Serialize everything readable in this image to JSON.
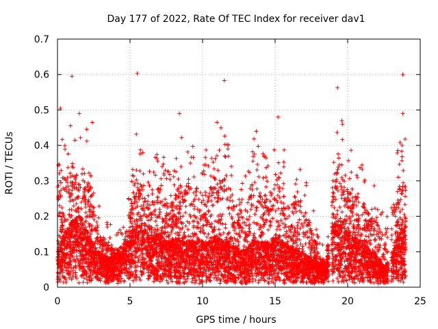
{
  "chart_data": {
    "type": "scatter",
    "title": "Day 177 of 2022, Rate Of TEC Index for receiver dav1",
    "xlabel": "GPS time / hours",
    "ylabel": "ROTI / TECUs",
    "xlim": [
      0,
      25
    ],
    "ylim": [
      0,
      0.7
    ],
    "x_ticks": [
      0,
      5,
      10,
      15,
      20,
      25
    ],
    "x_tick_labels": [
      "0",
      "5",
      "10",
      "15",
      "20",
      "25"
    ],
    "y_ticks": [
      0,
      0.1,
      0.2,
      0.3,
      0.4,
      0.5,
      0.6,
      0.7
    ],
    "y_tick_labels": [
      "0",
      "0.1",
      "0.2",
      "0.3",
      "0.4",
      "0.5",
      "0.6",
      "0.7"
    ],
    "grid": true,
    "marker": "+",
    "series_color": "#ff0000",
    "notable_points": [
      {
        "x": 0.2,
        "y": 0.505
      },
      {
        "x": 1.0,
        "y": 0.595
      },
      {
        "x": 1.5,
        "y": 0.49
      },
      {
        "x": 2.4,
        "y": 0.465
      },
      {
        "x": 5.5,
        "y": 0.603
      },
      {
        "x": 8.4,
        "y": 0.49
      },
      {
        "x": 11.0,
        "y": 0.465
      },
      {
        "x": 11.5,
        "y": 0.583
      },
      {
        "x": 13.7,
        "y": 0.44
      },
      {
        "x": 15.2,
        "y": 0.48
      },
      {
        "x": 19.3,
        "y": 0.563
      },
      {
        "x": 19.6,
        "y": 0.47
      },
      {
        "x": 23.8,
        "y": 0.6
      },
      {
        "x": 23.8,
        "y": 0.49
      }
    ],
    "envelope": [
      {
        "x": 0.0,
        "typ": 0.09,
        "peak": 0.44
      },
      {
        "x": 0.5,
        "typ": 0.12,
        "peak": 0.45
      },
      {
        "x": 1.0,
        "typ": 0.15,
        "peak": 0.46
      },
      {
        "x": 1.5,
        "typ": 0.16,
        "peak": 0.48
      },
      {
        "x": 2.0,
        "typ": 0.13,
        "peak": 0.45
      },
      {
        "x": 2.5,
        "typ": 0.09,
        "peak": 0.33
      },
      {
        "x": 3.0,
        "typ": 0.07,
        "peak": 0.2
      },
      {
        "x": 3.5,
        "typ": 0.06,
        "peak": 0.19
      },
      {
        "x": 4.0,
        "typ": 0.07,
        "peak": 0.15
      },
      {
        "x": 4.5,
        "typ": 0.08,
        "peak": 0.17
      },
      {
        "x": 5.0,
        "typ": 0.11,
        "peak": 0.3
      },
      {
        "x": 5.5,
        "typ": 0.15,
        "peak": 0.5
      },
      {
        "x": 6.0,
        "typ": 0.13,
        "peak": 0.36
      },
      {
        "x": 6.5,
        "typ": 0.11,
        "peak": 0.33
      },
      {
        "x": 7.0,
        "typ": 0.12,
        "peak": 0.42
      },
      {
        "x": 7.5,
        "typ": 0.1,
        "peak": 0.35
      },
      {
        "x": 8.0,
        "typ": 0.1,
        "peak": 0.35
      },
      {
        "x": 8.5,
        "typ": 0.11,
        "peak": 0.44
      },
      {
        "x": 9.0,
        "typ": 0.1,
        "peak": 0.42
      },
      {
        "x": 9.5,
        "typ": 0.1,
        "peak": 0.4
      },
      {
        "x": 10.0,
        "typ": 0.1,
        "peak": 0.38
      },
      {
        "x": 10.5,
        "typ": 0.1,
        "peak": 0.4
      },
      {
        "x": 11.0,
        "typ": 0.11,
        "peak": 0.46
      },
      {
        "x": 11.5,
        "typ": 0.1,
        "peak": 0.45
      },
      {
        "x": 12.0,
        "typ": 0.09,
        "peak": 0.4
      },
      {
        "x": 12.5,
        "typ": 0.08,
        "peak": 0.3
      },
      {
        "x": 13.0,
        "typ": 0.08,
        "peak": 0.32
      },
      {
        "x": 13.5,
        "typ": 0.1,
        "peak": 0.44
      },
      {
        "x": 14.0,
        "typ": 0.1,
        "peak": 0.38
      },
      {
        "x": 14.5,
        "typ": 0.1,
        "peak": 0.37
      },
      {
        "x": 15.0,
        "typ": 0.11,
        "peak": 0.42
      },
      {
        "x": 15.5,
        "typ": 0.1,
        "peak": 0.42
      },
      {
        "x": 16.0,
        "typ": 0.09,
        "peak": 0.33
      },
      {
        "x": 16.5,
        "typ": 0.08,
        "peak": 0.35
      },
      {
        "x": 17.0,
        "typ": 0.07,
        "peak": 0.36
      },
      {
        "x": 17.5,
        "typ": 0.06,
        "peak": 0.25
      },
      {
        "x": 18.0,
        "typ": 0.05,
        "peak": 0.15
      },
      {
        "x": 18.5,
        "typ": 0.04,
        "peak": 0.1
      },
      {
        "x": 19.0,
        "typ": 0.14,
        "peak": 0.45
      },
      {
        "x": 19.5,
        "typ": 0.15,
        "peak": 0.5
      },
      {
        "x": 20.0,
        "typ": 0.13,
        "peak": 0.4
      },
      {
        "x": 20.5,
        "typ": 0.11,
        "peak": 0.38
      },
      {
        "x": 21.0,
        "typ": 0.1,
        "peak": 0.35
      },
      {
        "x": 21.5,
        "typ": 0.08,
        "peak": 0.3
      },
      {
        "x": 22.0,
        "typ": 0.07,
        "peak": 0.28
      },
      {
        "x": 22.5,
        "typ": 0.04,
        "peak": 0.2
      },
      {
        "x": 23.0,
        "typ": 0.06,
        "peak": 0.3
      },
      {
        "x": 23.5,
        "typ": 0.12,
        "peak": 0.42
      },
      {
        "x": 24.0,
        "typ": 0.14,
        "peak": 0.45
      }
    ],
    "no_data_intervals": [
      [
        18.7,
        18.9
      ],
      [
        22.8,
        23.0
      ]
    ],
    "point_density_per_hour": 300
  }
}
